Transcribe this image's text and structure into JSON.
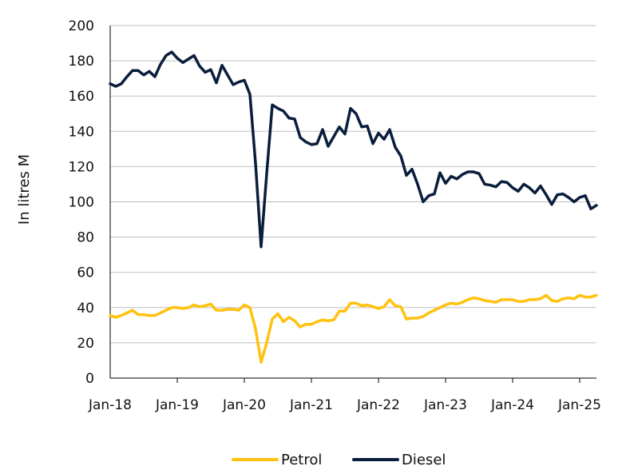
{
  "chart_data": {
    "type": "line",
    "title": "",
    "xlabel": "",
    "ylabel": "In litres M",
    "ylim": [
      0,
      200
    ],
    "yticks": [
      0,
      20,
      40,
      60,
      80,
      100,
      120,
      140,
      160,
      180,
      200
    ],
    "xticks": [
      "Jan-18",
      "Jan-19",
      "Jan-20",
      "Jan-21",
      "Jan-22",
      "Jan-23",
      "Jan-24",
      "Jan-25"
    ],
    "grid": "horizontal",
    "legend": "bottom",
    "series": [
      {
        "name": "Petrol",
        "color": "#FFC20E",
        "values": [
          35.5,
          34.5,
          35.5,
          37,
          38.5,
          36,
          36,
          35.5,
          35.5,
          37,
          38.5,
          40,
          40,
          39.5,
          40,
          41.5,
          40.5,
          41,
          42,
          38.5,
          38.5,
          39,
          39,
          38.5,
          41.5,
          40,
          28,
          9,
          20,
          33.5,
          36.5,
          32,
          34.5,
          32.5,
          29,
          30.5,
          30.5,
          32,
          33,
          32.5,
          33,
          38,
          38,
          42.5,
          42.5,
          41,
          41.5,
          40.5,
          39.5,
          40.5,
          44.5,
          41,
          40.5,
          33.5,
          34,
          34,
          35,
          37,
          38.5,
          40,
          41.5,
          42.5,
          42,
          43,
          44.5,
          45.5,
          45,
          44,
          43.5,
          43,
          44.5,
          44.5,
          44.5,
          43.5,
          43.5,
          44.5,
          44.5,
          45,
          47,
          44,
          43.5,
          45,
          45.5,
          45,
          47,
          46,
          46,
          47
        ]
      },
      {
        "name": "Diesel",
        "color": "#0A1E3C",
        "values": [
          167,
          165.5,
          167,
          171,
          174.5,
          174.5,
          172,
          174,
          171,
          178,
          183,
          185,
          181.5,
          179,
          181,
          183,
          177,
          173.5,
          175,
          167.5,
          177.5,
          172,
          166.5,
          168,
          169,
          161,
          122,
          74.5,
          116,
          155,
          153,
          151.5,
          147.5,
          147,
          136.5,
          134,
          132.5,
          133,
          141,
          131.5,
          137,
          142.5,
          138.5,
          153,
          150,
          142.5,
          143,
          133,
          139,
          135.5,
          141,
          131,
          126,
          115,
          118.5,
          110,
          100,
          103.5,
          104.5,
          116.5,
          110.5,
          114.5,
          113,
          115.5,
          117,
          117,
          116,
          110,
          109.5,
          108.5,
          111.5,
          111,
          108,
          106,
          110,
          108,
          105,
          109,
          104,
          98.5,
          104,
          104.5,
          102.5,
          100,
          102.5,
          103.5,
          96,
          98
        ]
      }
    ]
  }
}
